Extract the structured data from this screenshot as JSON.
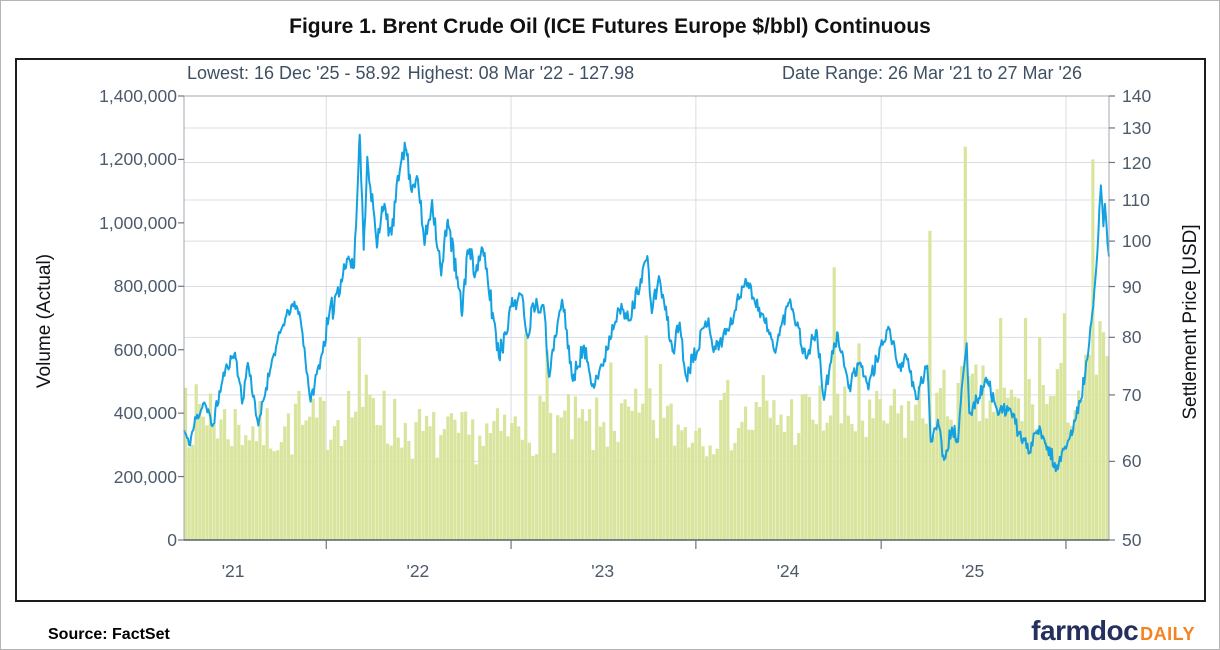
{
  "page": {
    "title": "Figure 1. Brent Crude Oil (ICE Futures Europe $/bbl) Continuous",
    "source_label": "Source: FactSet",
    "logo": {
      "name": "farmdoc-daily-logo",
      "part1": "farmdoc",
      "part2": "DAILY",
      "part1_color": "#26305f",
      "part2_color": "#f58220"
    }
  },
  "chart_data": {
    "type": "combo-bar-line-dual-axis",
    "title": "Figure 1. Brent Crude Oil (ICE Futures Europe $/bbl) Continuous",
    "annotations": {
      "lowest_label": "Lowest: 16 Dec '25 - 58.92",
      "highest_label": "Highest: 08 Mar '22 - 127.98",
      "date_range_label": "Date Range: 26 Mar '21 to 27 Mar '26"
    },
    "colors": {
      "price_line": "#14a1e1",
      "volume_bar": "#d9e49d",
      "grid": "#d9dde3",
      "spine": "#a2a9b3",
      "spine_bottom": "#57616d",
      "tick": "#6b7682",
      "tick_text": "#4b5b6b",
      "subtitle_text": "#3e5062"
    },
    "x_axis": {
      "start": "2021-03-26",
      "end": "2026-03-27",
      "year_gridline_dates": [
        "2022-01-01",
        "2023-01-01",
        "2024-01-01",
        "2025-01-01",
        "2026-01-01"
      ],
      "year_labels": [
        {
          "date": "2021-07-01",
          "label": "'21"
        },
        {
          "date": "2022-07-01",
          "label": "'22"
        },
        {
          "date": "2023-07-01",
          "label": "'23"
        },
        {
          "date": "2024-07-01",
          "label": "'24"
        },
        {
          "date": "2025-07-01",
          "label": "'25"
        }
      ]
    },
    "y_left": {
      "label": "Volume (Actual)",
      "scale": "linear",
      "min": 0,
      "max": 1400000,
      "ticks": [
        {
          "value": 0,
          "label": "0"
        },
        {
          "value": 200000,
          "label": "200,000"
        },
        {
          "value": 400000,
          "label": "400,000"
        },
        {
          "value": 600000,
          "label": "600,000"
        },
        {
          "value": 800000,
          "label": "800,000"
        },
        {
          "value": 1000000,
          "label": "1,000,000"
        },
        {
          "value": 1200000,
          "label": "1,200,000"
        },
        {
          "value": 1400000,
          "label": "1,400,000"
        }
      ]
    },
    "y_right": {
      "label": "Settlement Price [USD]",
      "scale": "log",
      "min": 50,
      "max": 140,
      "ticks": [
        {
          "value": 50,
          "label": "50"
        },
        {
          "value": 60,
          "label": "60"
        },
        {
          "value": 70,
          "label": "70"
        },
        {
          "value": 80,
          "label": "80"
        },
        {
          "value": 90,
          "label": "90"
        },
        {
          "value": 100,
          "label": "100"
        },
        {
          "value": 110,
          "label": "110"
        },
        {
          "value": 120,
          "label": "120"
        },
        {
          "value": 130,
          "label": "130"
        },
        {
          "value": 140,
          "label": "140"
        }
      ]
    },
    "price_series": {
      "name": "Settlement Price [USD]",
      "lowest": {
        "date": "2025-12-16",
        "value": 58.92
      },
      "highest": {
        "date": "2022-03-08",
        "value": 127.98
      },
      "noise_seed": 11,
      "noise_amp_by_year": {
        "2021": 1.1,
        "2022": 2.7,
        "2023": 1.7,
        "2024": 1.5,
        "2025": 1.15,
        "2026": 1.3
      },
      "keypoints": [
        [
          "2021-03-26",
          64.5
        ],
        [
          "2021-04-05",
          62.3
        ],
        [
          "2021-04-20",
          66.6
        ],
        [
          "2021-05-05",
          68.8
        ],
        [
          "2021-05-21",
          65.1
        ],
        [
          "2021-06-16",
          74.4
        ],
        [
          "2021-07-05",
          77.2
        ],
        [
          "2021-07-19",
          68.6
        ],
        [
          "2021-07-30",
          75.4
        ],
        [
          "2021-08-20",
          65.2
        ],
        [
          "2021-09-15",
          75.5
        ],
        [
          "2021-10-08",
          82.4
        ],
        [
          "2021-10-26",
          86.4
        ],
        [
          "2021-11-09",
          84.8
        ],
        [
          "2021-12-01",
          68.9
        ],
        [
          "2021-12-23",
          76.9
        ],
        [
          "2022-01-20",
          88.4
        ],
        [
          "2022-02-14",
          96.5
        ],
        [
          "2022-02-25",
          94.1
        ],
        [
          "2022-03-08",
          127.98
        ],
        [
          "2022-03-16",
          98.0
        ],
        [
          "2022-03-23",
          121.6
        ],
        [
          "2022-04-11",
          98.5
        ],
        [
          "2022-04-21",
          108.3
        ],
        [
          "2022-05-10",
          101.5
        ],
        [
          "2022-05-31",
          122.8
        ],
        [
          "2022-06-08",
          123.6
        ],
        [
          "2022-06-17",
          113.1
        ],
        [
          "2022-06-29",
          116.3
        ],
        [
          "2022-07-14",
          99.1
        ],
        [
          "2022-07-29",
          110.0
        ],
        [
          "2022-08-16",
          92.3
        ],
        [
          "2022-08-29",
          105.1
        ],
        [
          "2022-09-26",
          84.1
        ],
        [
          "2022-10-07",
          97.9
        ],
        [
          "2022-10-24",
          93.3
        ],
        [
          "2022-11-04",
          98.6
        ],
        [
          "2022-11-28",
          83.2
        ],
        [
          "2022-12-09",
          76.1
        ],
        [
          "2022-12-30",
          85.9
        ],
        [
          "2023-01-23",
          88.2
        ],
        [
          "2023-02-03",
          79.9
        ],
        [
          "2023-02-13",
          86.6
        ],
        [
          "2023-03-06",
          86.2
        ],
        [
          "2023-03-17",
          73.0
        ],
        [
          "2023-04-12",
          87.3
        ],
        [
          "2023-05-03",
          72.3
        ],
        [
          "2023-05-24",
          78.4
        ],
        [
          "2023-06-12",
          71.8
        ],
        [
          "2023-06-30",
          74.9
        ],
        [
          "2023-07-31",
          85.6
        ],
        [
          "2023-08-23",
          83.2
        ],
        [
          "2023-09-27",
          96.6
        ],
        [
          "2023-10-06",
          84.6
        ],
        [
          "2023-10-20",
          92.2
        ],
        [
          "2023-11-16",
          77.4
        ],
        [
          "2023-11-30",
          82.8
        ],
        [
          "2023-12-12",
          73.2
        ],
        [
          "2024-01-26",
          83.6
        ],
        [
          "2024-02-05",
          77.3
        ],
        [
          "2024-03-08",
          82.1
        ],
        [
          "2024-04-08",
          91.6
        ],
        [
          "2024-05-23",
          81.4
        ],
        [
          "2024-06-04",
          77.5
        ],
        [
          "2024-07-05",
          87.4
        ],
        [
          "2024-08-05",
          76.3
        ],
        [
          "2024-08-26",
          81.4
        ],
        [
          "2024-09-10",
          69.2
        ],
        [
          "2024-10-07",
          80.9
        ],
        [
          "2024-10-29",
          71.1
        ],
        [
          "2024-11-22",
          75.2
        ],
        [
          "2024-12-06",
          71.1
        ],
        [
          "2025-01-15",
          82.0
        ],
        [
          "2025-02-05",
          74.6
        ],
        [
          "2025-02-20",
          76.5
        ],
        [
          "2025-03-11",
          69.3
        ],
        [
          "2025-04-02",
          74.9
        ],
        [
          "2025-04-09",
          62.8
        ],
        [
          "2025-04-23",
          66.1
        ],
        [
          "2025-05-05",
          60.2
        ],
        [
          "2025-05-21",
          64.9
        ],
        [
          "2025-06-02",
          62.8
        ],
        [
          "2025-06-13",
          74.2
        ],
        [
          "2025-06-19",
          78.9
        ],
        [
          "2025-06-24",
          67.1
        ],
        [
          "2025-07-30",
          72.5
        ],
        [
          "2025-08-20",
          66.8
        ],
        [
          "2025-09-10",
          67.9
        ],
        [
          "2025-09-30",
          64.2
        ],
        [
          "2025-10-20",
          61.3
        ],
        [
          "2025-11-07",
          64.4
        ],
        [
          "2025-11-21",
          62.5
        ],
        [
          "2025-12-16",
          58.92
        ],
        [
          "2026-01-09",
          63.5
        ],
        [
          "2026-01-30",
          69.0
        ],
        [
          "2026-02-13",
          76.5
        ],
        [
          "2026-02-24",
          86.0
        ],
        [
          "2026-03-04",
          97.5
        ],
        [
          "2026-03-11",
          113.8
        ],
        [
          "2026-03-16",
          103.5
        ],
        [
          "2026-03-19",
          109.0
        ],
        [
          "2026-03-24",
          99.5
        ],
        [
          "2026-03-27",
          96.5
        ]
      ]
    },
    "volume_series": {
      "name": "Volume (Actual)",
      "bar_interval_days": 7,
      "noise_seed": 7,
      "noise_pct": 0.27,
      "base_anchors": [
        [
          "2021-03-26",
          400000
        ],
        [
          "2021-06-01",
          370000
        ],
        [
          "2021-09-01",
          345000
        ],
        [
          "2021-12-01",
          355000
        ],
        [
          "2022-03-08",
          430000
        ],
        [
          "2022-06-01",
          345000
        ],
        [
          "2022-09-01",
          320000
        ],
        [
          "2022-12-01",
          330000
        ],
        [
          "2023-03-15",
          375000
        ],
        [
          "2023-06-01",
          350000
        ],
        [
          "2023-09-27",
          385000
        ],
        [
          "2023-12-01",
          350000
        ],
        [
          "2024-03-01",
          370000
        ],
        [
          "2024-06-01",
          380000
        ],
        [
          "2024-09-15",
          400000
        ],
        [
          "2024-12-01",
          365000
        ],
        [
          "2025-03-01",
          400000
        ],
        [
          "2025-06-15",
          450000
        ],
        [
          "2025-09-01",
          420000
        ],
        [
          "2025-12-01",
          440000
        ],
        [
          "2026-02-01",
          470000
        ],
        [
          "2026-03-27",
          560000
        ]
      ],
      "spikes": [
        [
          "2021-03-26",
          480000
        ],
        [
          "2021-05-14",
          462000
        ],
        [
          "2021-11-05",
          470000
        ],
        [
          "2022-03-08",
          640000
        ],
        [
          "2022-04-22",
          470000
        ],
        [
          "2023-02-01",
          650000
        ],
        [
          "2023-03-14",
          600000
        ],
        [
          "2023-07-14",
          560000
        ],
        [
          "2023-09-26",
          645000
        ],
        [
          "2023-10-20",
          555000
        ],
        [
          "2024-03-01",
          505000
        ],
        [
          "2024-05-10",
          520000
        ],
        [
          "2024-10-01",
          860000
        ],
        [
          "2024-11-15",
          620000
        ],
        [
          "2025-04-08",
          975000
        ],
        [
          "2025-06-13",
          1240000
        ],
        [
          "2025-08-26",
          700000
        ],
        [
          "2025-10-14",
          700000
        ],
        [
          "2025-11-11",
          640000
        ],
        [
          "2025-12-30",
          715000
        ],
        [
          "2026-02-24",
          1200000
        ],
        [
          "2026-03-10",
          690000
        ],
        [
          "2026-03-24",
          580000
        ]
      ]
    }
  }
}
